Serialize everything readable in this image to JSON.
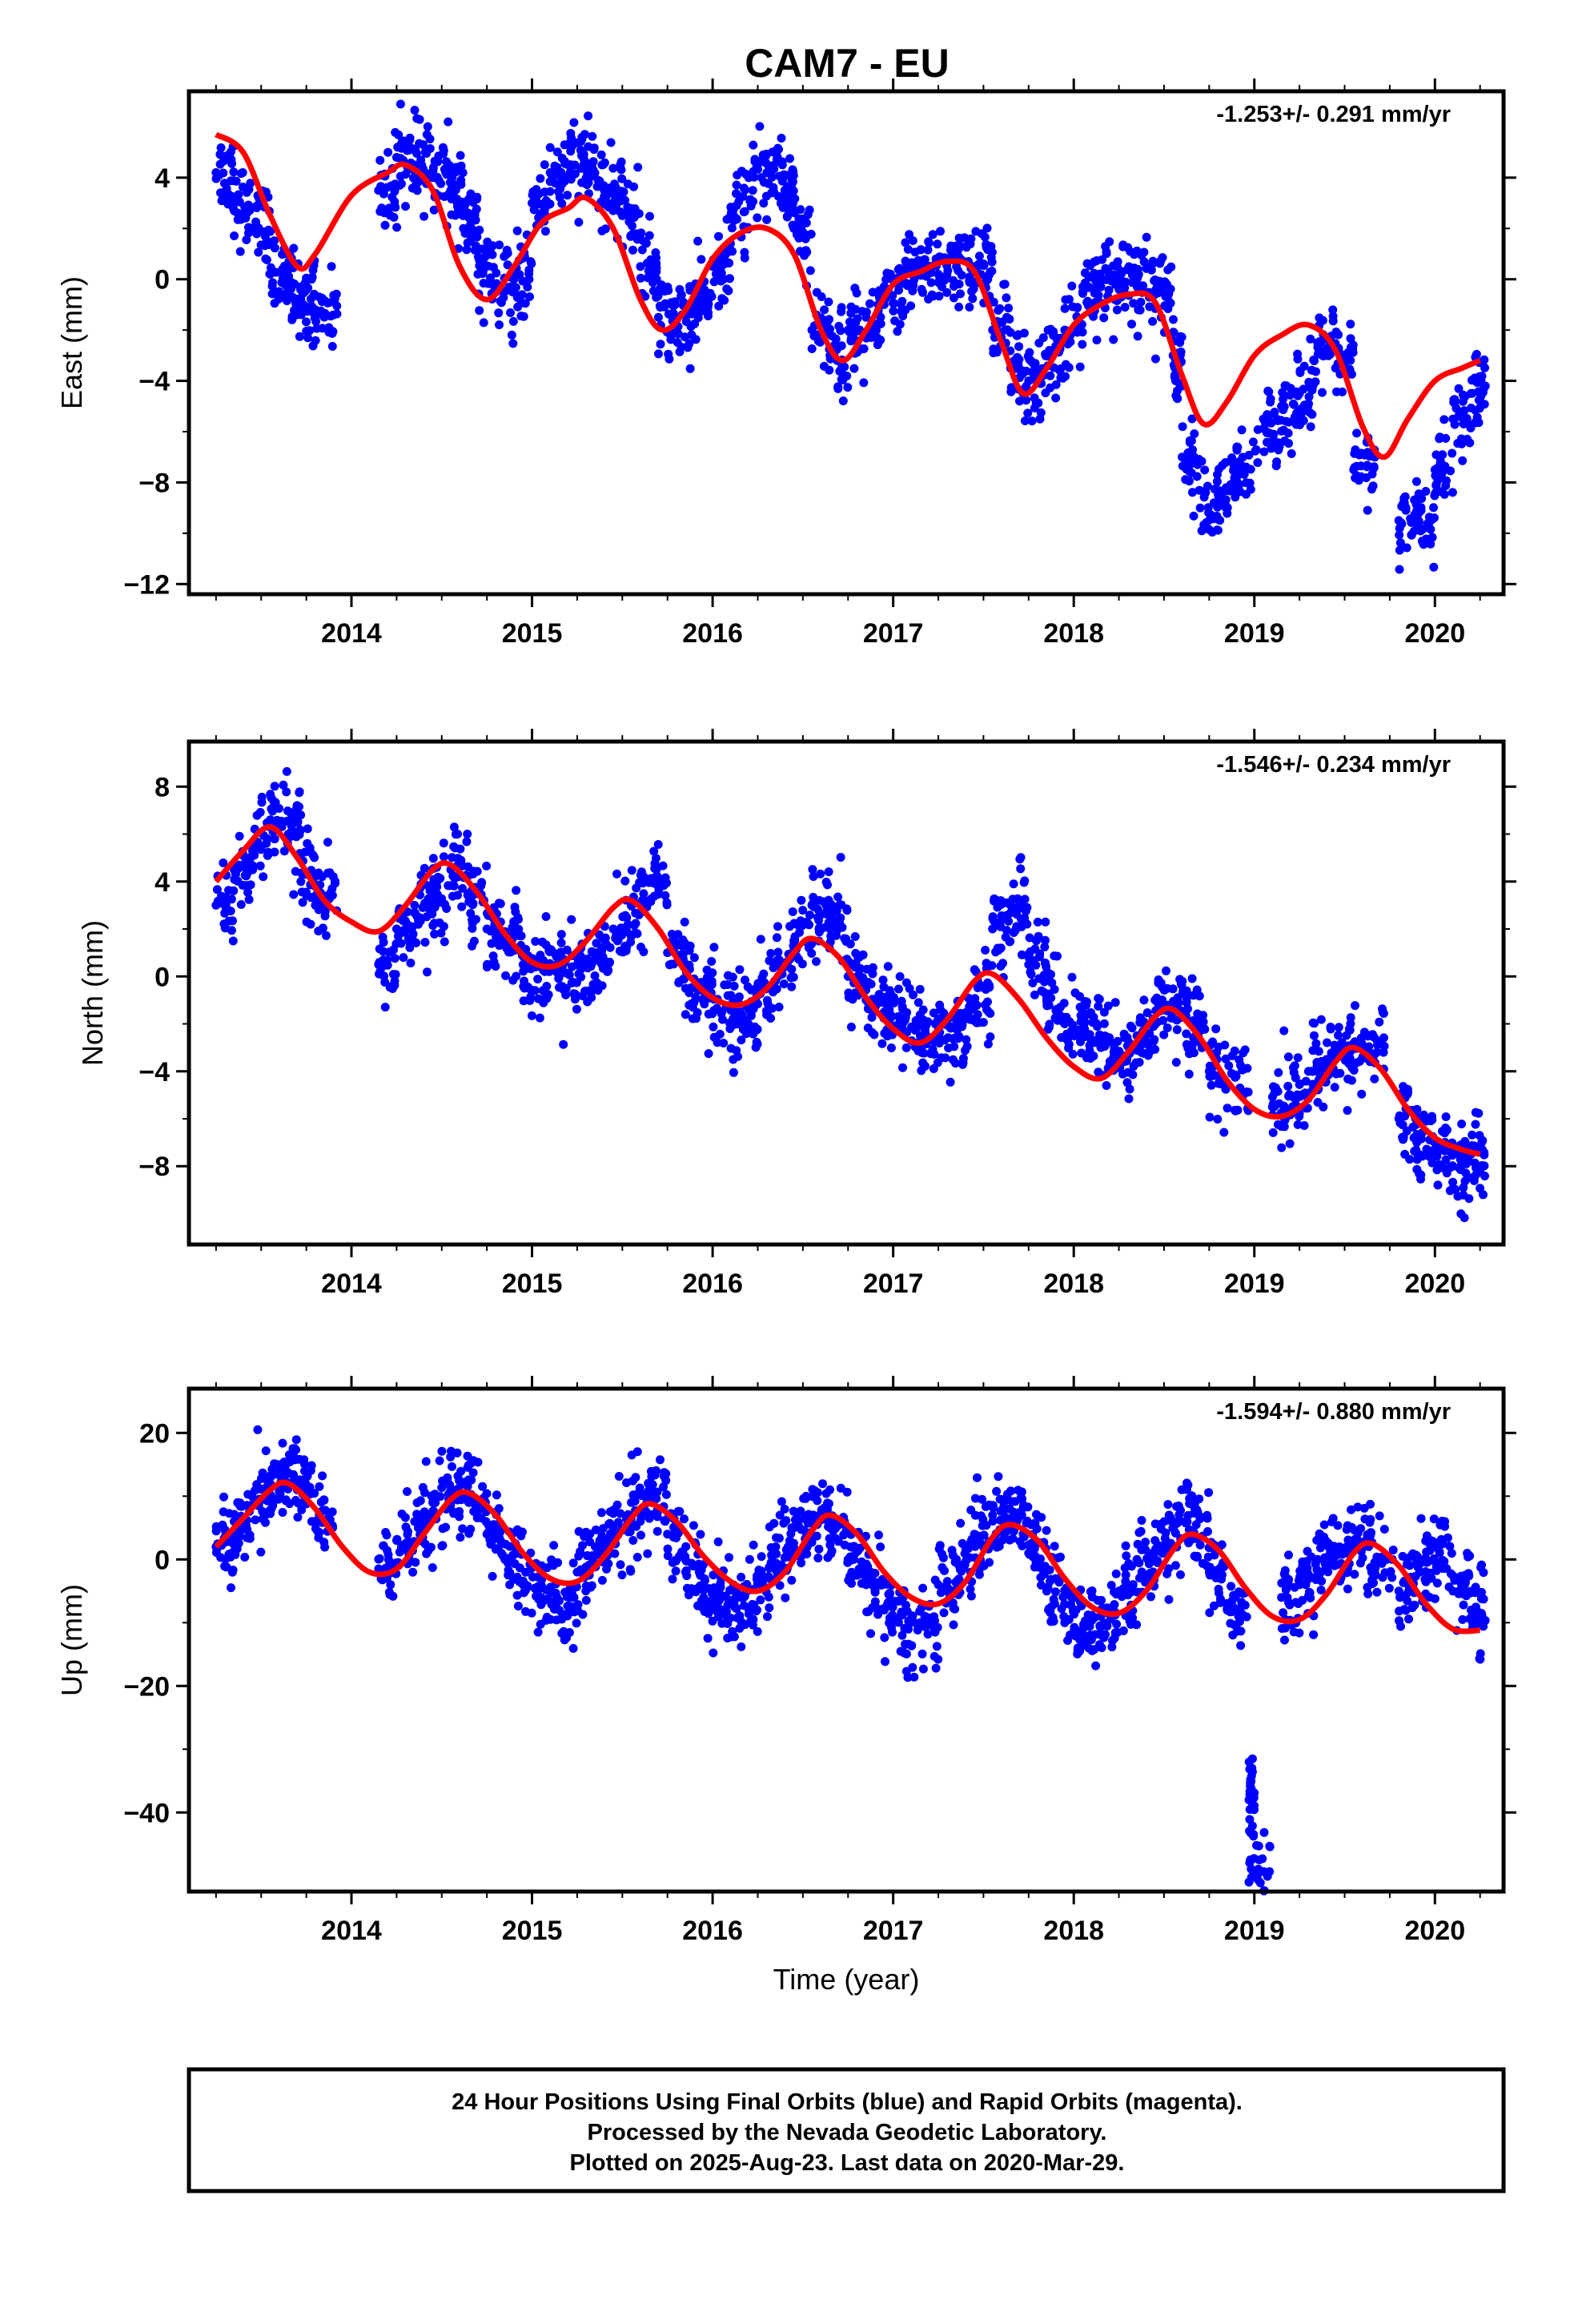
{
  "figure": {
    "title": "CAM7 - EU",
    "footer_lines": [
      "24 Hour Positions Using Final Orbits (blue) and Rapid Orbits (magenta).",
      "Processed by the Nevada Geodetic Laboratory.",
      "Plotted on 2025-Aug-23. Last data on 2020-Mar-29."
    ],
    "point_color": "#0000ff",
    "fit_color": "#ff0000"
  },
  "chart_data": [
    {
      "type": "scatter",
      "ylabel": "East (mm)",
      "xlabel": "",
      "rate_label": "-1.253+/- 0.291 mm/yr",
      "xlim": [
        2013.1,
        2020.38
      ],
      "ylim": [
        -12.4,
        7.4
      ],
      "xticks": [
        2014,
        2015,
        2016,
        2017,
        2018,
        2019,
        2020
      ],
      "yticks": [
        4,
        0,
        -4,
        -8,
        -12
      ],
      "grid": false,
      "series": [
        {
          "kind": "points",
          "x": [
            2013.25,
            2013.35,
            2013.45,
            2013.55,
            2013.65,
            2013.72,
            2013.8,
            2014.15,
            2014.25,
            2014.35,
            2014.45,
            2014.55,
            2014.62,
            2014.7,
            2014.8,
            2014.9,
            2015.0,
            2015.1,
            2015.2,
            2015.3,
            2015.4,
            2015.5,
            2015.6,
            2015.7,
            2015.8,
            2015.9,
            2016.0,
            2016.1,
            2016.2,
            2016.3,
            2016.4,
            2016.45,
            2016.55,
            2016.65,
            2016.75,
            2016.85,
            2016.95,
            2017.05,
            2017.15,
            2017.25,
            2017.35,
            2017.45,
            2017.55,
            2017.65,
            2017.75,
            2017.85,
            2017.95,
            2018.05,
            2018.15,
            2018.25,
            2018.35,
            2018.45,
            2018.55,
            2018.6,
            2018.7,
            2018.8,
            2018.9,
            2019.05,
            2019.15,
            2019.25,
            2019.35,
            2019.45,
            2019.55,
            2019.8,
            2019.9,
            2020.0,
            2020.1,
            2020.2
          ],
          "y": [
            4.2,
            3.0,
            2.0,
            0.2,
            -0.5,
            -0.8,
            -1.2,
            3.5,
            4.8,
            4.5,
            4.0,
            3.5,
            2.0,
            0.2,
            -0.5,
            0.0,
            3.0,
            4.2,
            4.5,
            4.0,
            3.5,
            2.5,
            0.5,
            -1.5,
            -1.6,
            -1.0,
            0.5,
            2.5,
            4.0,
            4.2,
            3.5,
            2.0,
            -2.0,
            -3.0,
            -2.0,
            -1.5,
            -1.0,
            0.0,
            0.5,
            0.2,
            0.5,
            0.5,
            -2.0,
            -3.5,
            -4.0,
            -3.0,
            -2.0,
            -0.5,
            -0.3,
            0.0,
            0.0,
            -0.5,
            -3.0,
            -7.0,
            -9.0,
            -8.5,
            -7.5,
            -5.5,
            -5.0,
            -4.5,
            -2.5,
            -3.5,
            -7.5,
            -9.5,
            -9.5,
            -7.5,
            -5.5,
            -4.5
          ]
        },
        {
          "kind": "fit",
          "x": [
            2013.25,
            2013.4,
            2013.55,
            2013.7,
            2013.8,
            2014.0,
            2014.2,
            2014.3,
            2014.45,
            2014.6,
            2014.75,
            2014.9,
            2015.05,
            2015.2,
            2015.3,
            2015.45,
            2015.6,
            2015.72,
            2015.85,
            2016.0,
            2016.15,
            2016.3,
            2016.45,
            2016.6,
            2016.72,
            2016.85,
            2017.0,
            2017.15,
            2017.3,
            2017.45,
            2017.6,
            2017.72,
            2017.85,
            2018.0,
            2018.15,
            2018.3,
            2018.45,
            2018.6,
            2018.72,
            2018.85,
            2019.0,
            2019.15,
            2019.3,
            2019.45,
            2019.6,
            2019.72,
            2019.85,
            2020.0,
            2020.15,
            2020.25
          ],
          "y": [
            5.7,
            5.0,
            2.5,
            0.5,
            1.0,
            3.3,
            4.2,
            4.5,
            3.5,
            0.5,
            -0.8,
            0.5,
            2.2,
            2.8,
            3.2,
            2.0,
            -0.8,
            -2.0,
            -1.2,
            0.8,
            1.8,
            2.0,
            1.0,
            -2.0,
            -3.2,
            -2.0,
            -0.2,
            0.3,
            0.7,
            0.3,
            -2.5,
            -4.5,
            -3.5,
            -1.8,
            -1.0,
            -0.6,
            -0.9,
            -3.8,
            -5.7,
            -4.8,
            -3.0,
            -2.2,
            -1.8,
            -2.8,
            -5.8,
            -7.0,
            -5.5,
            -4.0,
            -3.5,
            -3.2
          ]
        }
      ]
    },
    {
      "type": "scatter",
      "ylabel": "North (mm)",
      "xlabel": "",
      "rate_label": "-1.546+/- 0.234 mm/yr",
      "xlim": [
        2013.1,
        2020.38
      ],
      "ylim": [
        -11.3,
        9.9
      ],
      "xticks": [
        2014,
        2015,
        2016,
        2017,
        2018,
        2019,
        2020
      ],
      "yticks": [
        8,
        4,
        0,
        -4,
        -8
      ],
      "grid": false,
      "series": [
        {
          "kind": "points",
          "x": [
            2013.25,
            2013.35,
            2013.45,
            2013.55,
            2013.65,
            2013.72,
            2013.8,
            2014.15,
            2014.25,
            2014.35,
            2014.45,
            2014.55,
            2014.65,
            2014.75,
            2014.85,
            2014.95,
            2015.05,
            2015.15,
            2015.25,
            2015.35,
            2015.45,
            2015.55,
            2015.65,
            2015.75,
            2015.85,
            2015.95,
            2016.05,
            2016.15,
            2016.25,
            2016.35,
            2016.45,
            2016.55,
            2016.65,
            2016.75,
            2016.85,
            2016.95,
            2017.05,
            2017.15,
            2017.25,
            2017.35,
            2017.45,
            2017.55,
            2017.65,
            2017.75,
            2017.85,
            2017.95,
            2018.05,
            2018.15,
            2018.25,
            2018.35,
            2018.45,
            2018.55,
            2018.65,
            2018.75,
            2018.85,
            2019.1,
            2019.2,
            2019.3,
            2019.4,
            2019.5,
            2019.6,
            2019.8,
            2019.9,
            2020.0,
            2020.1,
            2020.2
          ],
          "y": [
            3.0,
            4.5,
            5.5,
            6.5,
            6.0,
            4.0,
            3.0,
            0.5,
            2.0,
            3.0,
            3.5,
            4.5,
            3.5,
            2.0,
            1.5,
            0.5,
            0.5,
            0.0,
            0.5,
            1.0,
            2.0,
            3.0,
            4.0,
            1.0,
            -0.5,
            -1.0,
            -1.5,
            -1.5,
            -0.5,
            0.5,
            1.5,
            3.0,
            2.0,
            0.0,
            -1.0,
            -1.5,
            -2.0,
            -2.5,
            -2.5,
            -2.0,
            -1.0,
            2.0,
            3.0,
            0.5,
            -1.0,
            -2.0,
            -2.5,
            -3.0,
            -3.5,
            -2.5,
            -1.0,
            -1.5,
            -2.0,
            -4.0,
            -4.5,
            -5.5,
            -5.0,
            -4.0,
            -3.5,
            -3.0,
            -3.0,
            -6.0,
            -7.0,
            -7.5,
            -8.0,
            -7.5
          ]
        },
        {
          "kind": "fit",
          "x": [
            2013.25,
            2013.4,
            2013.55,
            2013.7,
            2013.85,
            2014.0,
            2014.15,
            2014.3,
            2014.45,
            2014.55,
            2014.7,
            2014.85,
            2015.0,
            2015.15,
            2015.3,
            2015.45,
            2015.55,
            2015.7,
            2015.85,
            2016.0,
            2016.15,
            2016.3,
            2016.45,
            2016.55,
            2016.7,
            2016.85,
            2017.0,
            2017.15,
            2017.3,
            2017.45,
            2017.55,
            2017.7,
            2017.85,
            2018.0,
            2018.15,
            2018.3,
            2018.45,
            2018.55,
            2018.7,
            2018.85,
            2019.0,
            2019.15,
            2019.3,
            2019.45,
            2019.55,
            2019.7,
            2019.85,
            2020.0,
            2020.15,
            2020.25
          ],
          "y": [
            4.0,
            5.3,
            6.3,
            5.0,
            3.2,
            2.3,
            1.9,
            3.0,
            4.5,
            4.7,
            3.5,
            1.8,
            0.6,
            0.5,
            1.5,
            2.9,
            3.2,
            2.0,
            0.2,
            -0.9,
            -1.2,
            -0.5,
            1.0,
            1.6,
            0.8,
            -0.9,
            -2.2,
            -2.8,
            -1.8,
            -0.2,
            0.1,
            -1.0,
            -2.6,
            -3.8,
            -4.3,
            -3.2,
            -1.7,
            -1.4,
            -2.6,
            -4.4,
            -5.6,
            -5.9,
            -5.2,
            -3.6,
            -3.0,
            -3.9,
            -5.6,
            -6.8,
            -7.3,
            -7.5
          ]
        }
      ]
    },
    {
      "type": "scatter",
      "ylabel": "Up (mm)",
      "xlabel": "Time (year)",
      "rate_label": "-1.594+/- 0.880 mm/yr",
      "xlim": [
        2013.1,
        2020.38
      ],
      "ylim": [
        -52.5,
        27.0
      ],
      "xticks": [
        2014,
        2015,
        2016,
        2017,
        2018,
        2019,
        2020
      ],
      "yticks": [
        20,
        0,
        -20,
        -40
      ],
      "grid": false,
      "series": [
        {
          "kind": "points",
          "x": [
            2013.25,
            2013.35,
            2013.45,
            2013.55,
            2013.62,
            2013.7,
            2013.78,
            2014.15,
            2014.25,
            2014.35,
            2014.45,
            2014.55,
            2014.65,
            2014.75,
            2014.85,
            2014.95,
            2015.05,
            2015.15,
            2015.25,
            2015.35,
            2015.45,
            2015.55,
            2015.65,
            2015.75,
            2015.85,
            2015.95,
            2016.05,
            2016.15,
            2016.25,
            2016.35,
            2016.45,
            2016.55,
            2016.65,
            2016.75,
            2016.85,
            2016.95,
            2017.05,
            2017.15,
            2017.25,
            2017.35,
            2017.45,
            2017.55,
            2017.65,
            2017.75,
            2017.85,
            2017.95,
            2018.05,
            2018.15,
            2018.25,
            2018.35,
            2018.45,
            2018.55,
            2018.65,
            2018.75,
            2018.85,
            2018.97,
            2018.97,
            2019.15,
            2019.25,
            2019.35,
            2019.45,
            2019.55,
            2019.65,
            2019.8,
            2019.9,
            2020.0,
            2020.1,
            2020.2
          ],
          "y": [
            2.0,
            6.0,
            10.0,
            12.0,
            14.0,
            11.0,
            6.0,
            -2.0,
            3.0,
            6.0,
            9.0,
            11.0,
            9.0,
            4.0,
            0.0,
            -4.0,
            -6.0,
            -8.0,
            -2.0,
            2.0,
            5.0,
            9.0,
            10.0,
            4.0,
            -2.0,
            -6.0,
            -8.0,
            -6.0,
            -3.0,
            2.0,
            5.0,
            7.0,
            5.0,
            0.0,
            -4.0,
            -8.0,
            -12.0,
            -10.0,
            -4.0,
            0.0,
            4.0,
            7.0,
            6.0,
            1.0,
            -5.0,
            -10.0,
            -11.0,
            -9.0,
            -5.0,
            0.0,
            3.0,
            6.0,
            4.0,
            -2.0,
            -8.0,
            -38.0,
            -51.0,
            -6.0,
            -4.0,
            0.0,
            1.0,
            2.0,
            -2.0,
            -5.0,
            0.0,
            2.0,
            -5.0,
            -8.0
          ]
        },
        {
          "kind": "fit",
          "x": [
            2013.25,
            2013.4,
            2013.55,
            2013.65,
            2013.8,
            2013.95,
            2014.1,
            2014.25,
            2014.4,
            2014.55,
            2014.65,
            2014.8,
            2014.95,
            2015.1,
            2015.25,
            2015.4,
            2015.55,
            2015.65,
            2015.8,
            2015.95,
            2016.1,
            2016.25,
            2016.4,
            2016.55,
            2016.65,
            2016.8,
            2016.95,
            2017.1,
            2017.25,
            2017.4,
            2017.55,
            2017.65,
            2017.8,
            2017.95,
            2018.1,
            2018.25,
            2018.4,
            2018.55,
            2018.65,
            2018.8,
            2018.95,
            2019.1,
            2019.25,
            2019.4,
            2019.55,
            2019.65,
            2019.8,
            2019.95,
            2020.1,
            2020.25
          ],
          "y": [
            2.0,
            6.5,
            11.0,
            12.0,
            8.0,
            2.0,
            -2.0,
            -1.5,
            4.0,
            9.5,
            10.5,
            7.0,
            1.0,
            -3.0,
            -3.5,
            0.5,
            6.5,
            8.8,
            6.0,
            0.5,
            -3.5,
            -5.0,
            -2.0,
            4.5,
            7.0,
            4.0,
            -2.0,
            -6.0,
            -7.0,
            -3.5,
            3.5,
            5.5,
            3.0,
            -3.0,
            -7.5,
            -8.5,
            -5.0,
            1.5,
            4.0,
            1.5,
            -4.5,
            -9.0,
            -9.5,
            -5.5,
            1.0,
            2.5,
            -1.0,
            -7.0,
            -11.0,
            -11.2
          ]
        }
      ]
    }
  ]
}
